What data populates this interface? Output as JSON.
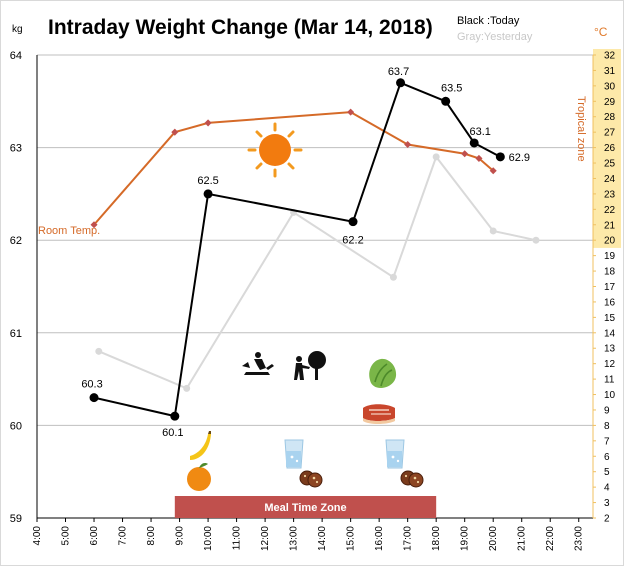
{
  "chart_data": {
    "type": "line",
    "title": "Intraday Weight Change (Mar 14, 2018)",
    "legend": {
      "today": "Black :Today",
      "yesterday": "Gray:Yesterday"
    },
    "y_left": {
      "unit": "kg",
      "range": [
        59,
        64
      ],
      "ticks": [
        "64",
        "63",
        "62",
        "61",
        "60",
        "59"
      ]
    },
    "y_right": {
      "unit": "°C",
      "range": [
        2,
        32
      ]
    },
    "x": {
      "range_hours": [
        4,
        23.5
      ],
      "ticks": [
        "4:00",
        "5:00",
        "6:00",
        "7:00",
        "8:00",
        "9:00",
        "10:00",
        "11:00",
        "12:00",
        "13:00",
        "14:00",
        "15:00",
        "16:00",
        "17:00",
        "18:00",
        "19:00",
        "20:00",
        "21:00",
        "22:00",
        "23:00"
      ]
    },
    "series": [
      {
        "name": "Today",
        "color": "#000000",
        "points": [
          {
            "t": "6:00",
            "kg": 60.3,
            "label": "60.3"
          },
          {
            "t": "8:50",
            "kg": 60.1,
            "label": "60.1"
          },
          {
            "t": "10:00",
            "kg": 62.5,
            "label": "62.5"
          },
          {
            "t": "15:05",
            "kg": 62.2,
            "label": "62.2"
          },
          {
            "t": "16:45",
            "kg": 63.7,
            "label": "63.7"
          },
          {
            "t": "18:20",
            "kg": 63.5,
            "label": "63.5"
          },
          {
            "t": "19:20",
            "kg": 63.05,
            "label": "63.1"
          },
          {
            "t": "20:15",
            "kg": 62.9,
            "label": "62.9"
          }
        ]
      },
      {
        "name": "Yesterday",
        "color": "#d9d9d9",
        "points": [
          {
            "t": "6:10",
            "kg": 60.8
          },
          {
            "t": "9:15",
            "kg": 60.4
          },
          {
            "t": "13:00",
            "kg": 62.3
          },
          {
            "t": "16:30",
            "kg": 61.6
          },
          {
            "t": "18:00",
            "kg": 62.9
          },
          {
            "t": "20:00",
            "kg": 62.1
          },
          {
            "t": "21:30",
            "kg": 62.0
          }
        ]
      },
      {
        "name": "Room Temp.",
        "color": "#d56a28",
        "axis": "right",
        "points": [
          {
            "t": "6:00",
            "c": 21
          },
          {
            "t": "8:50",
            "c": 27
          },
          {
            "t": "10:00",
            "c": 27.6
          },
          {
            "t": "15:00",
            "c": 28.3
          },
          {
            "t": "17:00",
            "c": 26.2
          },
          {
            "t": "19:00",
            "c": 25.6
          },
          {
            "t": "19:30",
            "c": 25.3
          },
          {
            "t": "20:00",
            "c": 24.5
          }
        ]
      }
    ],
    "tropical_zone": {
      "label": "Tropical zone",
      "from_c": 19.5,
      "to_c": 32.5,
      "color": "#fde9a9"
    },
    "meal_time_zone": {
      "label": "Meal Time Zone",
      "from": "8:50",
      "to": "18:00",
      "color": "#c0504d"
    },
    "icons": [
      "sun-icon",
      "banana-icon",
      "orange-icon",
      "gardening-icon",
      "tree-planting-icon",
      "water-glass-icon",
      "cookies-icon",
      "lettuce-icon",
      "steak-icon"
    ]
  },
  "room_temp_label": "Room Temp.",
  "tropical_label": "Tropical zone"
}
